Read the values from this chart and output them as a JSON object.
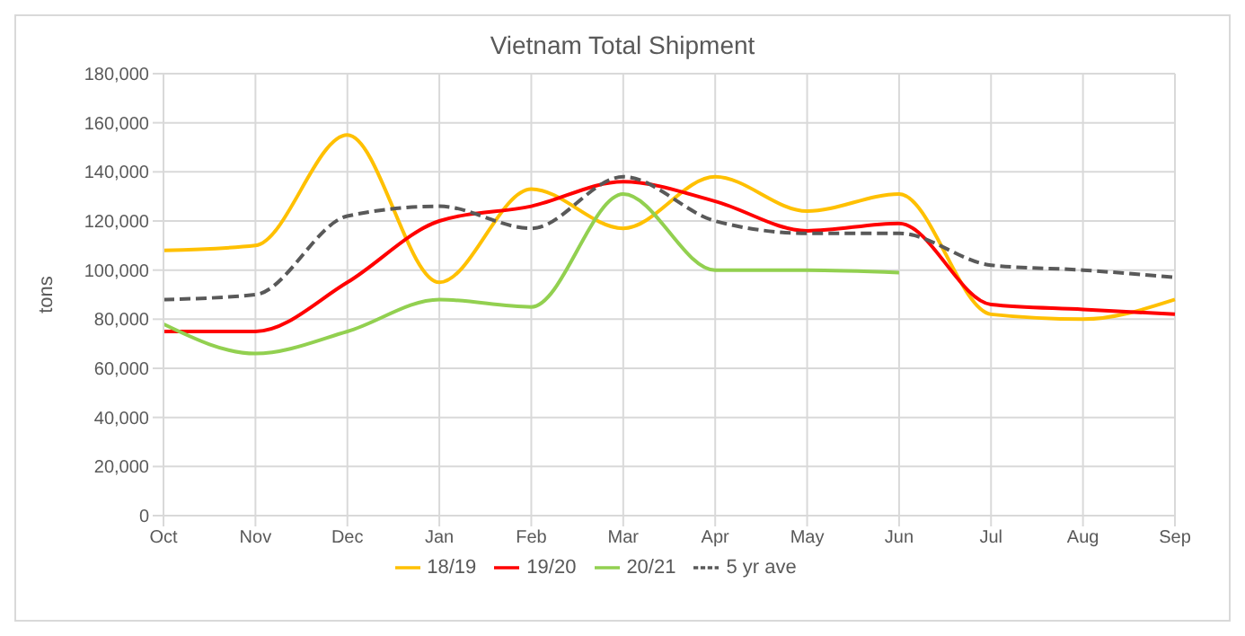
{
  "chart_data": {
    "type": "line",
    "title": "Vietnam Total Shipment",
    "ylabel": "tons",
    "categories": [
      "Oct",
      "Nov",
      "Dec",
      "Jan",
      "Feb",
      "Mar",
      "Apr",
      "May",
      "Jun",
      "Jul",
      "Aug",
      "Sep"
    ],
    "series": [
      {
        "name": "18/19",
        "color": "#ffc000",
        "values": [
          108000,
          110000,
          155000,
          95000,
          133000,
          117000,
          138000,
          124000,
          131000,
          82000,
          80000,
          88000
        ]
      },
      {
        "name": "19/20",
        "color": "#ff0000",
        "values": [
          75000,
          75000,
          95000,
          120000,
          126000,
          136000,
          128000,
          116000,
          119000,
          86000,
          84000,
          82000
        ]
      },
      {
        "name": "20/21",
        "color": "#92d050",
        "values": [
          78000,
          66000,
          75000,
          88000,
          85000,
          131000,
          100000,
          100000,
          99000,
          null,
          null,
          null
        ]
      },
      {
        "name": "5 yr ave",
        "color": "#595959",
        "line_style": "dashed",
        "values": [
          88000,
          90000,
          122000,
          126000,
          117000,
          138000,
          120000,
          115000,
          115000,
          102000,
          100000,
          97000
        ]
      }
    ],
    "ylim": [
      0,
      180000
    ],
    "yticks": [
      0,
      {
        "value": 20000,
        "label": "20,000"
      },
      {
        "value": 40000,
        "label": "40,000"
      },
      {
        "value": 60000,
        "label": "60,000"
      },
      {
        "value": 80000,
        "label": "80,000"
      },
      {
        "value": 100000,
        "label": "100,000"
      },
      {
        "value": 120000,
        "label": "120,000"
      },
      {
        "value": 140000,
        "label": "140,000"
      },
      {
        "value": 160000,
        "label": "160,000"
      },
      {
        "value": 180000,
        "label": "180,000"
      }
    ],
    "grid": true,
    "legend": "bottom",
    "marker": "none"
  }
}
